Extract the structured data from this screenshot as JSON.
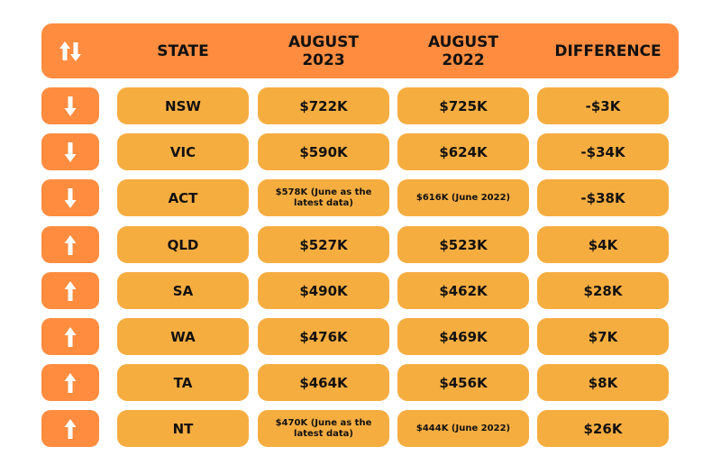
{
  "header": {
    "icon": "up-down-arrows-icon",
    "columns": [
      "STATE",
      "AUGUST\n2023",
      "AUGUST\n2022",
      "DIFFERENCE"
    ],
    "state_label": "STATE",
    "aug2023_line1": "AUGUST",
    "aug2023_line2": "2023",
    "aug2022_line1": "AUGUST",
    "aug2022_line2": "2022",
    "difference_label": "DIFFERENCE"
  },
  "colors": {
    "header_bg": "#FF8C3F",
    "icon_bg": "#FF8C3F",
    "cell_bg": "#F6AD40",
    "text": "#111111",
    "arrow": "#FFFFFF"
  },
  "rows": [
    {
      "trend": "down",
      "state": "NSW",
      "aug2023": "$722K",
      "aug2022": "$725K",
      "difference": "-$3K"
    },
    {
      "trend": "down",
      "state": "VIC",
      "aug2023": "$590K",
      "aug2022": "$624K",
      "difference": "-$34K"
    },
    {
      "trend": "down",
      "state": "ACT",
      "aug2023": "$578K (June as the latest data)",
      "aug2022": "$616K (June 2022)",
      "difference": "-$38K"
    },
    {
      "trend": "up",
      "state": "QLD",
      "aug2023": "$527K",
      "aug2022": "$523K",
      "difference": "$4K"
    },
    {
      "trend": "up",
      "state": "SA",
      "aug2023": "$490K",
      "aug2022": "$462K",
      "difference": "$28K"
    },
    {
      "trend": "up",
      "state": "WA",
      "aug2023": "$476K",
      "aug2022": "$469K",
      "difference": "$7K"
    },
    {
      "trend": "up",
      "state": "TA",
      "aug2023": "$464K",
      "aug2022": "$456K",
      "difference": "$8K"
    },
    {
      "trend": "up",
      "state": "NT",
      "aug2023": "$470K (June as the latest data)",
      "aug2022": "$444K (June 2022)",
      "difference": "$26K"
    }
  ]
}
